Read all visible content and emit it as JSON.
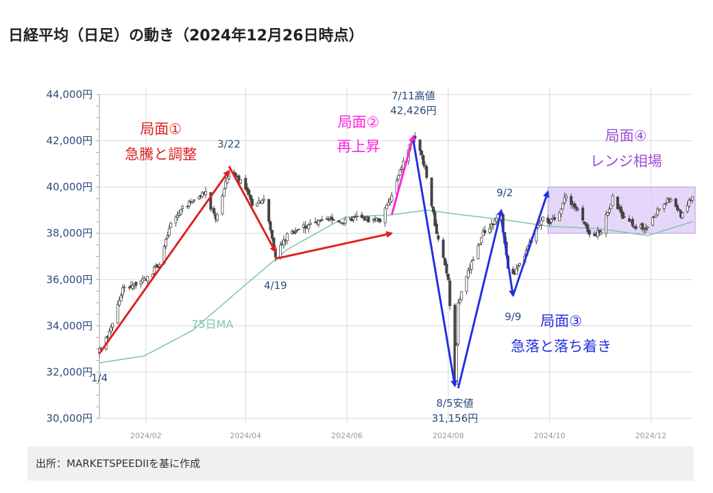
{
  "title": "日経平均（日足）の動き（2024年12月26日時点）",
  "source": "出所：MARKETSPEEDIIを基に作成",
  "colors": {
    "candle": "#444444",
    "ma": "#7fc8a9",
    "phase1": "#e02020",
    "phase2": "#ff22dd",
    "phase3": "#2030e0",
    "phase4": "#9a4fd8",
    "range_fill": "#dcc8f8",
    "axis_text": "#2a4a7a",
    "grid": "#d8d8d8"
  },
  "chart_data": {
    "type": "candlestick",
    "y_ticks": [
      "44,000円",
      "42,000円",
      "40,000円",
      "38,000円",
      "36,000円",
      "34,000円",
      "32,000円",
      "30,000円"
    ],
    "y_tick_values": [
      44000,
      42000,
      40000,
      38000,
      36000,
      34000,
      32000,
      30000
    ],
    "ylim": [
      30000,
      44000
    ],
    "x_ticks": [
      "2024/02",
      "2024/04",
      "2024/06",
      "2024/08",
      "2024/10",
      "2024/12"
    ],
    "x_tick_dates": [
      "2024-02-01",
      "2024-04-01",
      "2024-06-01",
      "2024-08-01",
      "2024-10-01",
      "2024-12-01"
    ],
    "xlim": [
      "2024-01-04",
      "2024-12-26"
    ],
    "price_path": [
      [
        "2024-01-04",
        32900
      ],
      [
        "2024-01-10",
        33700
      ],
      [
        "2024-01-18",
        35600
      ],
      [
        "2024-01-25",
        35800
      ],
      [
        "2024-02-01",
        36000
      ],
      [
        "2024-02-09",
        36700
      ],
      [
        "2024-02-16",
        38400
      ],
      [
        "2024-02-22",
        39000
      ],
      [
        "2024-03-01",
        39500
      ],
      [
        "2024-03-08",
        39700
      ],
      [
        "2024-03-14",
        38600
      ],
      [
        "2024-03-22",
        40700
      ],
      [
        "2024-03-29",
        40300
      ],
      [
        "2024-04-05",
        39300
      ],
      [
        "2024-04-12",
        39500
      ],
      [
        "2024-04-19",
        37100
      ],
      [
        "2024-04-26",
        37900
      ],
      [
        "2024-05-02",
        38200
      ],
      [
        "2024-05-10",
        38400
      ],
      [
        "2024-05-17",
        38500
      ],
      [
        "2024-05-24",
        38600
      ],
      [
        "2024-05-31",
        38500
      ],
      [
        "2024-06-07",
        38700
      ],
      [
        "2024-06-14",
        38600
      ],
      [
        "2024-06-21",
        38600
      ],
      [
        "2024-06-28",
        39600
      ],
      [
        "2024-07-04",
        40900
      ],
      [
        "2024-07-11",
        42200
      ],
      [
        "2024-07-18",
        40900
      ],
      [
        "2024-07-25",
        38000
      ],
      [
        "2024-08-01",
        36000
      ],
      [
        "2024-08-05",
        31500
      ],
      [
        "2024-08-07",
        35000
      ],
      [
        "2024-08-15",
        36700
      ],
      [
        "2024-08-22",
        38000
      ],
      [
        "2024-08-30",
        38600
      ],
      [
        "2024-09-02",
        38700
      ],
      [
        "2024-09-06",
        36500
      ],
      [
        "2024-09-09",
        36200
      ],
      [
        "2024-09-13",
        36600
      ],
      [
        "2024-09-20",
        37700
      ],
      [
        "2024-09-27",
        38800
      ],
      [
        "2024-10-01",
        38500
      ],
      [
        "2024-10-04",
        38600
      ],
      [
        "2024-10-11",
        39600
      ],
      [
        "2024-10-18",
        39000
      ],
      [
        "2024-10-25",
        37900
      ],
      [
        "2024-11-01",
        38100
      ],
      [
        "2024-11-08",
        39500
      ],
      [
        "2024-11-15",
        38600
      ],
      [
        "2024-11-22",
        38300
      ],
      [
        "2024-11-29",
        38200
      ],
      [
        "2024-12-06",
        39100
      ],
      [
        "2024-12-13",
        39500
      ],
      [
        "2024-12-19",
        38800
      ],
      [
        "2024-12-26",
        39600
      ]
    ],
    "ma_series": {
      "name": "75日MA",
      "points": [
        [
          "2024-01-04",
          32400
        ],
        [
          "2024-01-31",
          32700
        ],
        [
          "2024-02-29",
          33800
        ],
        [
          "2024-03-29",
          35600
        ],
        [
          "2024-04-26",
          37300
        ],
        [
          "2024-05-31",
          38700
        ],
        [
          "2024-06-28",
          38800
        ],
        [
          "2024-07-19",
          39000
        ],
        [
          "2024-08-09",
          38800
        ],
        [
          "2024-09-02",
          38600
        ],
        [
          "2024-10-01",
          38300
        ],
        [
          "2024-10-31",
          38200
        ],
        [
          "2024-11-29",
          37900
        ],
        [
          "2024-12-26",
          38500
        ]
      ]
    },
    "range_box": {
      "from": "2024-09-30",
      "to": "2024-12-26",
      "ylow": 38000,
      "yhigh": 40000
    },
    "arrows": [
      {
        "from": [
          "2024-01-04",
          32800
        ],
        "to": [
          "2024-03-22",
          40700
        ],
        "phase": "phase1"
      },
      {
        "from": [
          "2024-03-22",
          40900
        ],
        "to": [
          "2024-04-19",
          37200
        ],
        "phase": "phase1"
      },
      {
        "from": [
          "2024-04-19",
          36900
        ],
        "to": [
          "2024-06-28",
          38000
        ],
        "phase": "phase1"
      },
      {
        "from": [
          "2024-06-28",
          38800
        ],
        "to": [
          "2024-07-11",
          42200
        ],
        "phase": "phase2"
      },
      {
        "from": [
          "2024-07-11",
          42000
        ],
        "to": [
          "2024-08-05",
          31400
        ],
        "phase": "phase3"
      },
      {
        "from": [
          "2024-08-07",
          31300
        ],
        "to": [
          "2024-09-02",
          39000
        ],
        "phase": "phase3"
      },
      {
        "from": [
          "2024-09-02",
          38600
        ],
        "to": [
          "2024-09-09",
          35300
        ],
        "phase": "phase3"
      },
      {
        "from": [
          "2024-09-09",
          35300
        ],
        "to": [
          "2024-09-30",
          39800
        ],
        "phase": "phase3"
      }
    ],
    "annotations": [
      {
        "text": "1/4",
        "date": "2024-01-04",
        "value": 31600,
        "color_key": "axis_text",
        "size": 15
      },
      {
        "text": "3/22",
        "date": "2024-03-22",
        "value": 41700,
        "color_key": "axis_text",
        "size": 15
      },
      {
        "text": "4/19",
        "date": "2024-04-19",
        "value": 35600,
        "color_key": "axis_text",
        "size": 15
      },
      {
        "text": "7/11高値",
        "date": "2024-07-11",
        "value": 43800,
        "color_key": "axis_text",
        "size": 15
      },
      {
        "text": "42,426円",
        "date": "2024-07-11",
        "value": 43150,
        "color_key": "axis_text",
        "size": 15
      },
      {
        "text": "8/5安値",
        "date": "2024-08-05",
        "value": 30500,
        "color_key": "axis_text",
        "size": 15
      },
      {
        "text": "31,156円",
        "date": "2024-08-05",
        "value": 29850,
        "color_key": "axis_text",
        "size": 15
      },
      {
        "text": "9/2",
        "date": "2024-09-04",
        "value": 39600,
        "color_key": "axis_text",
        "size": 15
      },
      {
        "text": "9/9",
        "date": "2024-09-09",
        "value": 34250,
        "color_key": "axis_text",
        "size": 15
      },
      {
        "text": "75日MA",
        "date": "2024-03-12",
        "value": 33900,
        "color_key": "ma",
        "size": 16
      },
      {
        "text": "局面①",
        "date": "2024-02-10",
        "value": 42300,
        "color_key": "phase1",
        "size": 21
      },
      {
        "text": "急騰と調整",
        "date": "2024-02-10",
        "value": 41200,
        "color_key": "phase1",
        "size": 21
      },
      {
        "text": "局面②",
        "date": "2024-06-08",
        "value": 42600,
        "color_key": "phase2",
        "size": 21
      },
      {
        "text": "再上昇",
        "date": "2024-06-08",
        "value": 41550,
        "color_key": "phase2",
        "size": 21
      },
      {
        "text": "局面③",
        "date": "2024-10-08",
        "value": 34000,
        "color_key": "phase3",
        "size": 21
      },
      {
        "text": "急落と落ち着き",
        "date": "2024-10-08",
        "value": 32900,
        "color_key": "phase3",
        "size": 21
      },
      {
        "text": "局面④",
        "date": "2024-11-16",
        "value": 42000,
        "color_key": "phase4",
        "size": 21
      },
      {
        "text": "レンジ相場",
        "date": "2024-11-16",
        "value": 40900,
        "color_key": "phase4",
        "size": 21
      }
    ]
  }
}
